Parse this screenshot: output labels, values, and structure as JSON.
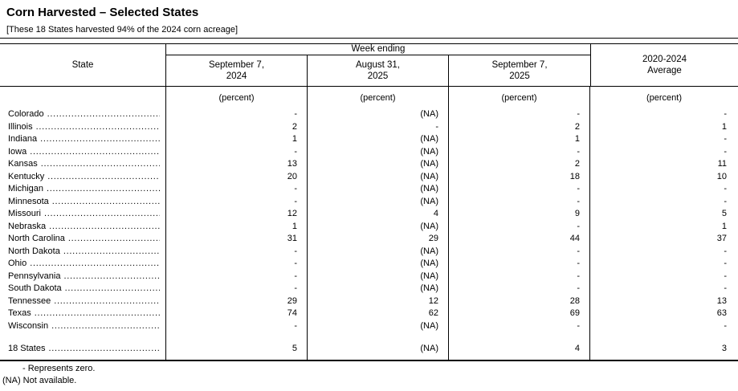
{
  "page": {
    "title": "Corn Harvested – Selected States",
    "headnote": "[These 18 States harvested 94% of the 2024 corn acreage]"
  },
  "table": {
    "state_header": "State",
    "week_ending_header": "Week ending",
    "columns": [
      "September 7,\n2024",
      "August 31,\n2025",
      "September 7,\n2025",
      "2020-2024\nAverage"
    ],
    "unit_label": "(percent)",
    "rows": [
      {
        "state": "Colorado",
        "values": [
          "-",
          "(NA)",
          "-",
          "-"
        ]
      },
      {
        "state": "Illinois",
        "values": [
          "2",
          "-",
          "2",
          "1"
        ]
      },
      {
        "state": "Indiana",
        "values": [
          "1",
          "(NA)",
          "1",
          "-"
        ]
      },
      {
        "state": "Iowa",
        "values": [
          "-",
          "(NA)",
          "-",
          "-"
        ]
      },
      {
        "state": "Kansas",
        "values": [
          "13",
          "(NA)",
          "2",
          "11"
        ]
      },
      {
        "state": "Kentucky",
        "values": [
          "20",
          "(NA)",
          "18",
          "10"
        ]
      },
      {
        "state": "Michigan",
        "values": [
          "-",
          "(NA)",
          "-",
          "-"
        ]
      },
      {
        "state": "Minnesota",
        "values": [
          "-",
          "(NA)",
          "-",
          "-"
        ]
      },
      {
        "state": "Missouri",
        "values": [
          "12",
          "4",
          "9",
          "5"
        ]
      },
      {
        "state": "Nebraska",
        "values": [
          "1",
          "(NA)",
          "-",
          "1"
        ]
      },
      {
        "state": "North Carolina",
        "values": [
          "31",
          "29",
          "44",
          "37"
        ]
      },
      {
        "state": "North Dakota",
        "values": [
          "-",
          "(NA)",
          "-",
          "-"
        ]
      },
      {
        "state": "Ohio",
        "values": [
          "-",
          "(NA)",
          "-",
          "-"
        ]
      },
      {
        "state": "Pennsylvania",
        "values": [
          "-",
          "(NA)",
          "-",
          "-"
        ]
      },
      {
        "state": "South Dakota",
        "values": [
          "-",
          "(NA)",
          "-",
          "-"
        ]
      },
      {
        "state": "Tennessee",
        "values": [
          "29",
          "12",
          "28",
          "13"
        ]
      },
      {
        "state": "Texas",
        "values": [
          "74",
          "62",
          "69",
          "63"
        ]
      },
      {
        "state": "Wisconsin",
        "values": [
          "-",
          "(NA)",
          "-",
          "-"
        ]
      }
    ],
    "total_row": {
      "state": "18 States",
      "values": [
        "5",
        "(NA)",
        "4",
        "3"
      ]
    }
  },
  "footnotes": {
    "zero": "- Represents zero.",
    "na": "(NA) Not available."
  }
}
